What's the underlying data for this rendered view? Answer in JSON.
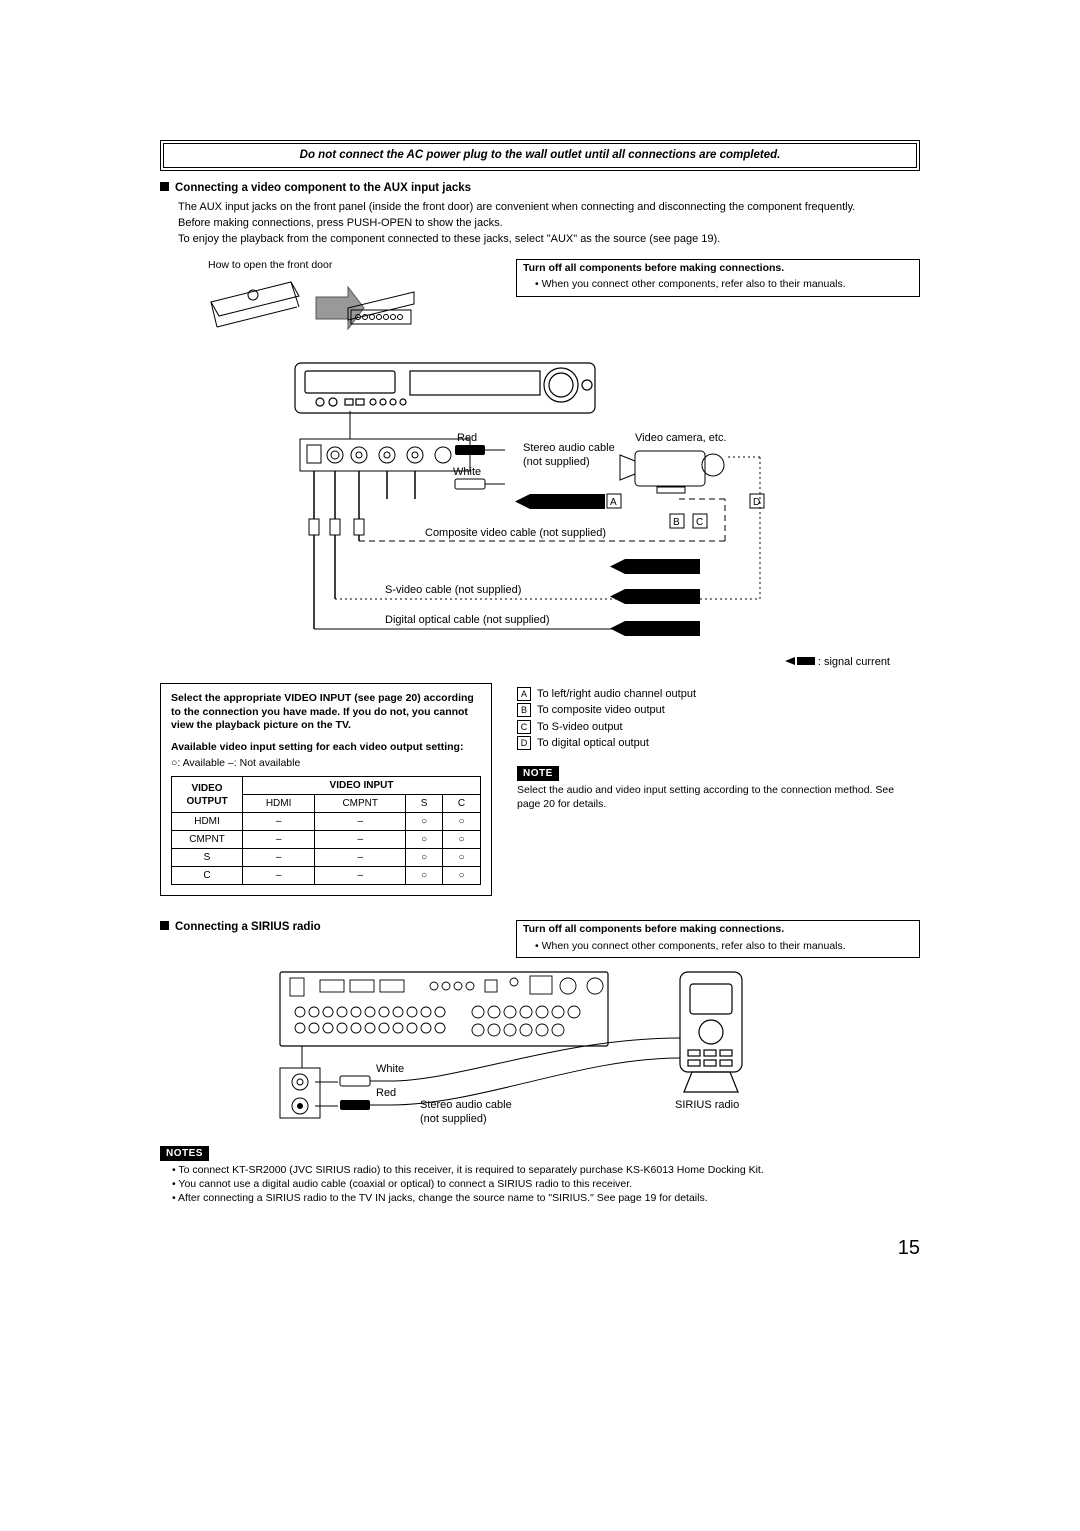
{
  "warning": "Do not connect the AC power plug to the wall outlet until all connections are completed.",
  "section_aux": {
    "heading": "Connecting a video component to the AUX input jacks",
    "p1": "The AUX input jacks on the front panel (inside the front door) are convenient when connecting and disconnecting the component frequently.",
    "p2": "Before making connections, press PUSH-OPEN to show the jacks.",
    "p3": "To enjoy the playback from the component connected to these jacks, select \"AUX\" as the source (see page 19).",
    "how_to_open": "How to open the front door"
  },
  "callout": {
    "title": "Turn off all components before making connections.",
    "bullet": "When you connect other components, refer also to their manuals."
  },
  "diagram": {
    "red": "Red",
    "white": "White",
    "stereo_cable": "Stereo audio cable (not supplied)",
    "video_cam": "Video camera, etc.",
    "composite": "Composite video cable (not supplied)",
    "svideo": "S-video cable (not supplied)",
    "optical": "Digital optical cable (not supplied)",
    "signal": ": signal current",
    "A": "A",
    "B": "B",
    "C": "C",
    "D": "D"
  },
  "video_table_box": {
    "p1": "Select the appropriate VIDEO INPUT (see page 20) according to the connection you have made. If you do not, you cannot view the playback picture on the TV.",
    "p2": "Available video input setting for each video output setting:",
    "legend": "○: Available     –: Not available",
    "header_output": "VIDEO OUTPUT",
    "header_input": "VIDEO INPUT",
    "cols": [
      "HDMI",
      "CMPNT",
      "S",
      "C"
    ],
    "rows": [
      {
        "out": "HDMI",
        "cells": [
          "–",
          "–",
          "○",
          "○"
        ]
      },
      {
        "out": "CMPNT",
        "cells": [
          "–",
          "–",
          "○",
          "○"
        ]
      },
      {
        "out": "S",
        "cells": [
          "–",
          "–",
          "○",
          "○"
        ]
      },
      {
        "out": "C",
        "cells": [
          "–",
          "–",
          "○",
          "○"
        ]
      }
    ]
  },
  "outputs_legend": {
    "A": "To left/right audio channel output",
    "B": "To composite video output",
    "C": "To S-video output",
    "D": "To digital optical output"
  },
  "note_side": {
    "label": "NOTE",
    "text": "Select the audio and video input setting according to the connection method. See page 20 for details."
  },
  "section_sirius": {
    "heading": "Connecting a SIRIUS radio",
    "white": "White",
    "red": "Red",
    "stereo_cable": "Stereo audio cable (not supplied)",
    "sirius_radio": "SIRIUS radio"
  },
  "notes_bottom": {
    "label": "NOTES",
    "items": [
      "To connect KT-SR2000 (JVC SIRIUS radio) to this receiver, it is required to separately purchase KS-K6013 Home Docking Kit.",
      "You cannot use a digital audio cable (coaxial or optical) to connect a SIRIUS radio to this receiver.",
      "After connecting a SIRIUS radio to the TV IN jacks, change the source name to \"SIRIUS.\" See page 19 for details."
    ]
  },
  "page_number": "15"
}
